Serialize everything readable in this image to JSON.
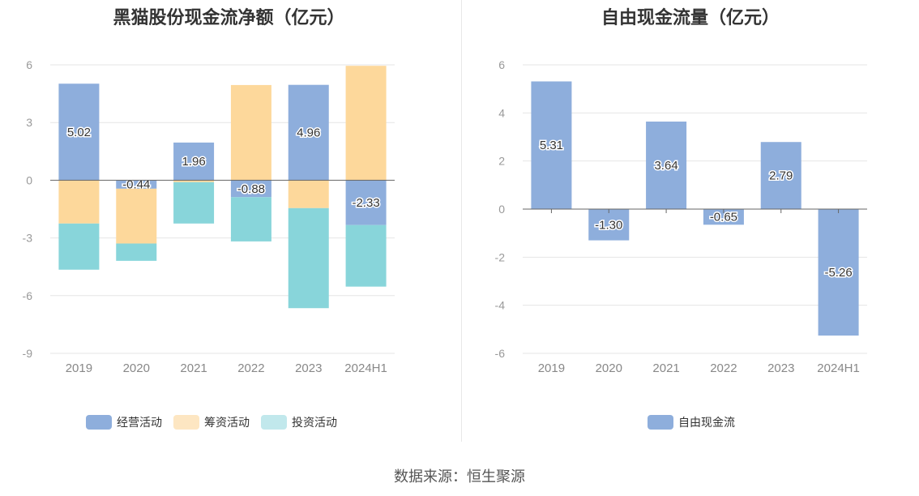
{
  "chart_data": [
    {
      "type": "bar",
      "title": "黑猫股份现金流净额（亿元）",
      "categories": [
        "2019",
        "2020",
        "2021",
        "2022",
        "2023",
        "2024H1"
      ],
      "ylim": [
        -9,
        6
      ],
      "yticks": [
        6,
        3,
        0,
        -3,
        -6,
        -9
      ],
      "stacked": true,
      "grid": true,
      "legend_position": "bottom",
      "series": [
        {
          "name": "经营活动",
          "color": "#8eaedc",
          "values": [
            5.02,
            -0.44,
            1.96,
            -0.88,
            4.96,
            -2.33
          ],
          "labels": [
            "5.02",
            "-0.44",
            "1.96",
            "-0.88",
            "4.96",
            "-2.33"
          ]
        },
        {
          "name": "筹资活动",
          "color": "#fdd89b",
          "values": [
            -2.25,
            -2.85,
            -0.1,
            4.95,
            -1.45,
            5.95
          ]
        },
        {
          "name": "投资活动",
          "color": "#88d5da",
          "values": [
            -2.4,
            -0.9,
            -2.15,
            -2.3,
            -5.2,
            -3.2
          ]
        }
      ]
    },
    {
      "type": "bar",
      "title": "自由现金流量（亿元）",
      "categories": [
        "2019",
        "2020",
        "2021",
        "2022",
        "2023",
        "2024H1"
      ],
      "ylim": [
        -6,
        6
      ],
      "yticks": [
        6,
        4,
        2,
        0,
        -2,
        -4,
        -6
      ],
      "grid": true,
      "legend_position": "bottom",
      "series": [
        {
          "name": "自由现金流",
          "color": "#8eaedc",
          "values": [
            5.31,
            -1.3,
            3.64,
            -0.65,
            2.79,
            -5.26
          ],
          "labels": [
            "5.31",
            "-1.30",
            "3.64",
            "-0.65",
            "2.79",
            "-5.26"
          ]
        }
      ]
    }
  ],
  "legend_colors": {
    "operating": "#8eaedc",
    "financing": "#fde6c2",
    "investing": "#c1e8ec"
  },
  "source_text": "数据来源：恒生聚源"
}
